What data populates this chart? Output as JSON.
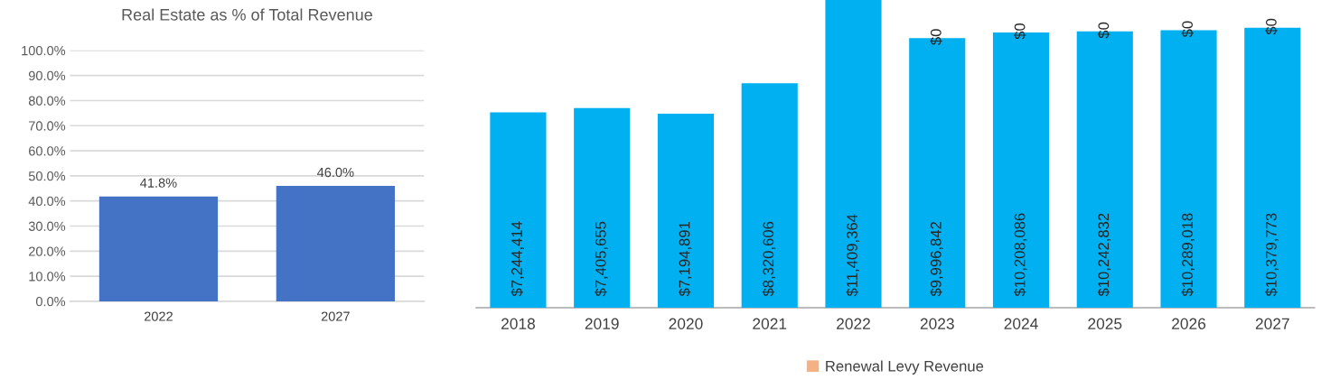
{
  "chart_data": [
    {
      "type": "bar",
      "title": "Real Estate as % of Total Revenue",
      "categories": [
        "2022",
        "2027"
      ],
      "values": [
        41.8,
        46.0
      ],
      "color": "#4472c4",
      "value_labels": [
        "41.8%",
        "46.0%"
      ],
      "ylim": [
        0,
        100
      ],
      "yticks": [
        {
          "value": 0,
          "label": "0.0%"
        },
        {
          "value": 10,
          "label": "10.0%"
        },
        {
          "value": 20,
          "label": "20.0%"
        },
        {
          "value": 30,
          "label": "30.0%"
        },
        {
          "value": 40,
          "label": "40.0%"
        },
        {
          "value": 50,
          "label": "50.0%"
        },
        {
          "value": 60,
          "label": "60.0%"
        },
        {
          "value": 70,
          "label": "70.0%"
        },
        {
          "value": 80,
          "label": "80.0%"
        },
        {
          "value": 90,
          "label": "90.0%"
        },
        {
          "value": 100,
          "label": "100.0%"
        }
      ],
      "grid": "y"
    },
    {
      "type": "bar",
      "stacked": true,
      "categories": [
        "2018",
        "2019",
        "2020",
        "2021",
        "2022",
        "2023",
        "2024",
        "2025",
        "2026",
        "2027"
      ],
      "series": [
        {
          "color": "#00b0f0",
          "values": [
            7244414,
            7405655,
            7194891,
            8320606,
            11409364,
            9996842,
            10208086,
            10242832,
            10289018,
            10379773
          ],
          "value_labels": [
            "$7,244,414",
            "$7,405,655",
            "$7,194,891",
            "$8,320,606",
            "$11,409,364",
            "$9,996,842",
            "$10,208,086",
            "$10,242,832",
            "$10,289,018",
            "$10,379,773"
          ]
        },
        {
          "name": "Renewal Levy Revenue",
          "color": "#f4b183",
          "values": [
            null,
            null,
            null,
            null,
            null,
            0,
            0,
            0,
            0,
            0
          ],
          "value_labels": [
            null,
            null,
            null,
            null,
            null,
            "$0",
            "$0",
            "$0",
            "$0",
            "$0"
          ]
        }
      ],
      "legend": "bottom",
      "tick_labels": "x"
    }
  ]
}
